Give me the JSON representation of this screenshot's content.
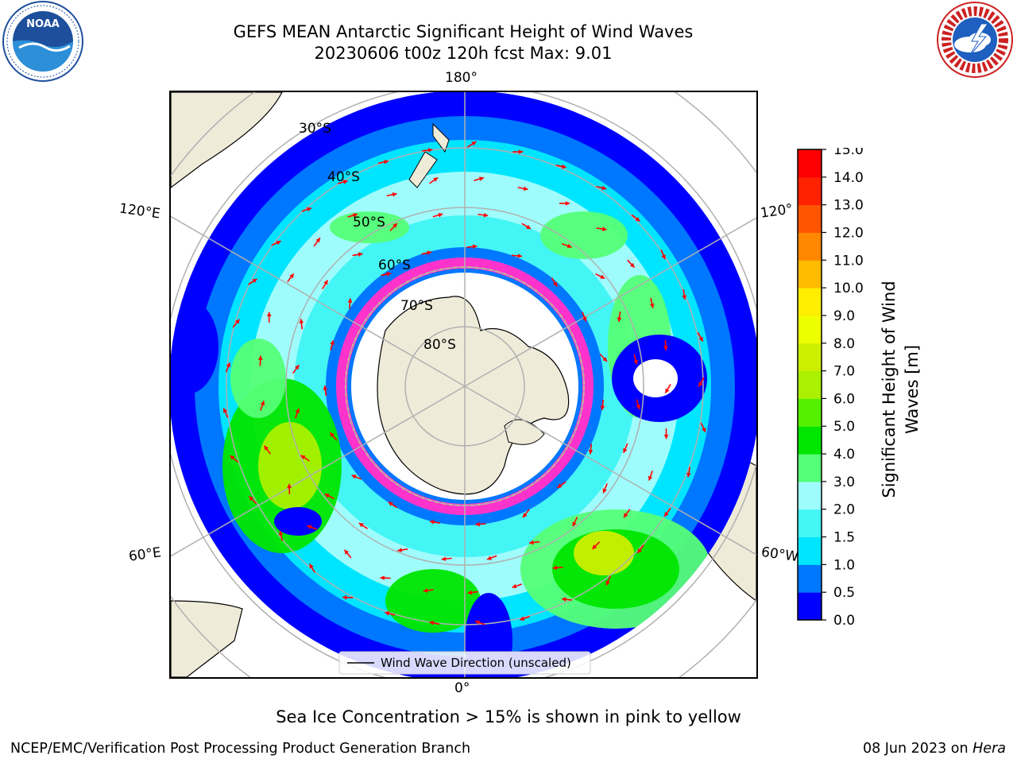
{
  "title": {
    "line1": "GEFS MEAN Antarctic Significant Height of Wind Waves",
    "line2": "20230606 t00z 120h fcst   Max: 9.01"
  },
  "logos": {
    "left": {
      "text": "NOAA",
      "icon": "noaa-logo"
    },
    "right": {
      "icon": "nws-logo"
    }
  },
  "map": {
    "projection": "south-polar-stereographic",
    "longitude_labels": {
      "top": "180°",
      "bottom": "0°",
      "left_upper": "120°E",
      "left_lower": "60°E",
      "right_upper": "120°",
      "right_lower": "60°W"
    },
    "latitude_labels": [
      "30°S",
      "40°S",
      "50°S",
      "60°S",
      "70°S",
      "80°S"
    ],
    "legend": "Wind Wave Direction (unscaled)",
    "colors": {
      "land": "#efebd9",
      "sea_ice_low": "#ff33cc",
      "sea_ice_high": "#ffff00",
      "arrows": "#ff0000",
      "grid": "#b0b0b0"
    }
  },
  "colorbar": {
    "label": "Significant Height of Wind Waves [m]",
    "label_line1": "Significant Height of Wind",
    "label_line2": "Waves [m]",
    "ticks": [
      "0.0",
      "0.5",
      "1.0",
      "1.5",
      "2.0",
      "3.0",
      "4.0",
      "5.0",
      "6.0",
      "7.0",
      "8.0",
      "9.0",
      "10.0",
      "11.0",
      "12.0",
      "13.0",
      "14.0",
      "15.0"
    ],
    "colors": [
      "#0000ff",
      "#0077ff",
      "#00e5ff",
      "#44f5f5",
      "#9ffcfc",
      "#55ff77",
      "#00e600",
      "#55f000",
      "#aaf000",
      "#ccee00",
      "#eeff00",
      "#ffee00",
      "#ffbb00",
      "#ff8800",
      "#ff5500",
      "#ff2200",
      "#ff0000"
    ]
  },
  "footer": {
    "note": "Sea Ice Concentration > 15% is shown in pink to yellow",
    "credit": "NCEP/EMC/Verification Post Processing Product Generation Branch",
    "date_prefix": "08 Jun 2023 on ",
    "date_host": "Hera"
  }
}
